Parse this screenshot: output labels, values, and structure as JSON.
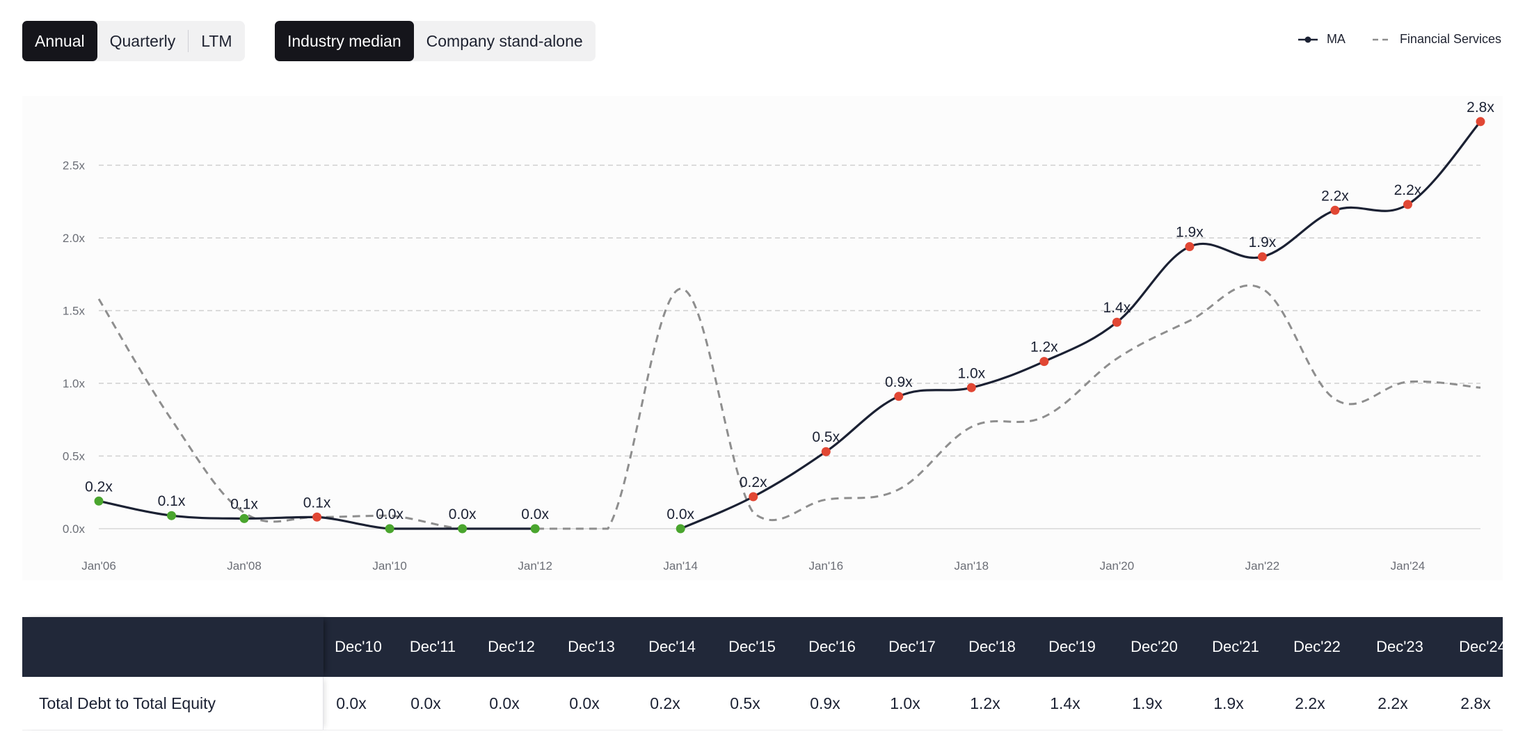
{
  "period_toggle": {
    "options": [
      "Annual",
      "Quarterly",
      "LTM"
    ],
    "selected": "Annual"
  },
  "mode_toggle": {
    "options": [
      "Industry median",
      "Company stand-alone"
    ],
    "selected": "Industry median"
  },
  "legend": {
    "company": "MA",
    "industry": "Financial Services"
  },
  "colors": {
    "company_line": "#1b2133",
    "industry_line": "#8e8e8e",
    "point_good": "#4aa52e",
    "point_bad": "#e14734",
    "grid": "#cfcfcf"
  },
  "chart_data": {
    "type": "line",
    "title": "",
    "xlabel": "",
    "ylabel": "",
    "ylim": [
      0,
      2.8
    ],
    "y_ticks": [
      0.0,
      0.5,
      1.0,
      1.5,
      2.0,
      2.5
    ],
    "y_tick_labels": [
      "0.0x",
      "0.5x",
      "1.0x",
      "1.5x",
      "2.0x",
      "2.5x"
    ],
    "x_range": [
      2006,
      2025
    ],
    "x_ticks": [
      2006,
      2008,
      2010,
      2012,
      2014,
      2016,
      2018,
      2020,
      2022,
      2024
    ],
    "x_tick_labels": [
      "Jan'06",
      "Jan'08",
      "Jan'10",
      "Jan'12",
      "Jan'14",
      "Jan'16",
      "Jan'18",
      "Jan'20",
      "Jan'22",
      "Jan'24"
    ],
    "series": [
      {
        "name": "MA",
        "style": "solid",
        "x": [
          2006,
          2007,
          2008,
          2009,
          2010,
          2011,
          2012,
          2014,
          2015,
          2016,
          2017,
          2018,
          2019,
          2020,
          2021,
          2022,
          2023,
          2024,
          2025
        ],
        "values": [
          0.19,
          0.09,
          0.07,
          0.08,
          0.0,
          0.0,
          0.0,
          0.0,
          0.22,
          0.53,
          0.91,
          0.97,
          1.15,
          1.42,
          1.94,
          1.87,
          2.19,
          2.23,
          2.8
        ],
        "labels": [
          "0.2x",
          "0.1x",
          "0.1x",
          "0.1x",
          "0.0x",
          "0.0x",
          "0.0x",
          "0.0x",
          "0.2x",
          "0.5x",
          "0.9x",
          "1.0x",
          "1.2x",
          "1.4x",
          "1.9x",
          "1.9x",
          "2.2x",
          "2.2x",
          "2.8x"
        ],
        "status": [
          "good",
          "good",
          "good",
          "bad",
          "good",
          "good",
          "good",
          "good",
          "bad",
          "bad",
          "bad",
          "bad",
          "bad",
          "bad",
          "bad",
          "bad",
          "bad",
          "bad",
          "bad"
        ]
      },
      {
        "name": "Financial Services",
        "style": "dashed",
        "x": [
          2006,
          2007,
          2008,
          2009,
          2010,
          2011,
          2012,
          2013,
          2014,
          2015,
          2016,
          2017,
          2018,
          2019,
          2020,
          2021,
          2022,
          2023,
          2024,
          2025
        ],
        "values": [
          1.58,
          0.75,
          0.11,
          0.08,
          0.09,
          0.0,
          0.0,
          0.0,
          1.65,
          0.11,
          0.2,
          0.27,
          0.7,
          0.77,
          1.17,
          1.43,
          1.65,
          0.89,
          1.01,
          0.97
        ]
      }
    ]
  },
  "table": {
    "headers": [
      "Dec'10",
      "Dec'11",
      "Dec'12",
      "Dec'13",
      "Dec'14",
      "Dec'15",
      "Dec'16",
      "Dec'17",
      "Dec'18",
      "Dec'19",
      "Dec'20",
      "Dec'21",
      "Dec'22",
      "Dec'23",
      "Dec'24"
    ],
    "rows": [
      {
        "label": "Total Debt to Total Equity",
        "values": [
          "0.0x",
          "0.0x",
          "0.0x",
          "0.0x",
          "0.2x",
          "0.5x",
          "0.9x",
          "1.0x",
          "1.2x",
          "1.4x",
          "1.9x",
          "1.9x",
          "2.2x",
          "2.2x",
          "2.8x"
        ]
      }
    ]
  }
}
